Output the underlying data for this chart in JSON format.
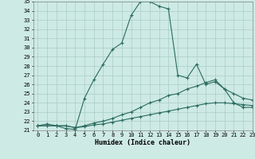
{
  "xlabel": "Humidex (Indice chaleur)",
  "background_color": "#ceeae4",
  "grid_color": "#aaccc6",
  "line_color": "#2a6b60",
  "x_values": [
    0,
    1,
    2,
    3,
    4,
    5,
    6,
    7,
    8,
    9,
    10,
    11,
    12,
    13,
    14,
    15,
    16,
    17,
    18,
    19,
    20,
    21,
    22,
    23
  ],
  "series1": [
    21.5,
    21.7,
    21.5,
    21.2,
    21.1,
    24.5,
    26.5,
    28.2,
    29.8,
    30.5,
    33.5,
    35.0,
    35.0,
    34.5,
    34.2,
    27.0,
    26.7,
    28.2,
    26.0,
    26.3,
    25.5,
    24.0,
    23.5,
    23.5
  ],
  "series2": [
    21.5,
    21.5,
    21.5,
    21.5,
    21.3,
    21.5,
    21.8,
    22.0,
    22.3,
    22.7,
    23.0,
    23.5,
    24.0,
    24.3,
    24.8,
    25.0,
    25.5,
    25.8,
    26.2,
    26.5,
    25.5,
    25.0,
    24.5,
    24.3
  ],
  "series3": [
    21.5,
    21.5,
    21.5,
    21.5,
    21.3,
    21.4,
    21.6,
    21.7,
    21.9,
    22.1,
    22.3,
    22.5,
    22.7,
    22.9,
    23.1,
    23.3,
    23.5,
    23.7,
    23.9,
    24.0,
    24.0,
    23.9,
    23.8,
    23.7
  ],
  "ylim": [
    21,
    35
  ],
  "xlim": [
    -0.5,
    23
  ],
  "yticks": [
    21,
    22,
    23,
    24,
    25,
    26,
    27,
    28,
    29,
    30,
    31,
    32,
    33,
    34,
    35
  ],
  "xticks": [
    0,
    1,
    2,
    3,
    4,
    5,
    6,
    7,
    8,
    9,
    10,
    11,
    12,
    13,
    14,
    15,
    16,
    17,
    18,
    19,
    20,
    21,
    22,
    23
  ],
  "marker": "+",
  "markersize": 3,
  "linewidth": 0.8,
  "label_fontsize": 6,
  "tick_fontsize": 5
}
